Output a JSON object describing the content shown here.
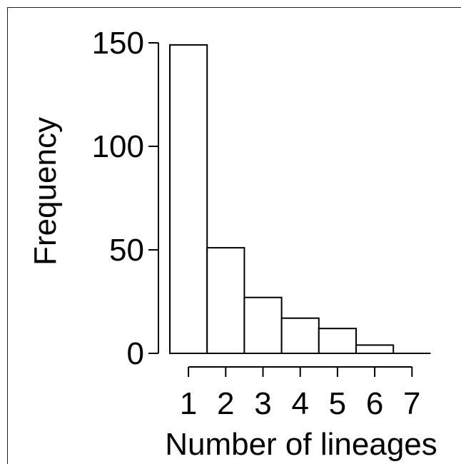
{
  "chart_data": {
    "type": "bar",
    "categories": [
      "1",
      "2",
      "3",
      "4",
      "5",
      "6",
      "7"
    ],
    "values": [
      149,
      51,
      27,
      17,
      12,
      4,
      0
    ],
    "title": "",
    "xlabel": "Number of lineages",
    "ylabel": "Frequency",
    "ylim": [
      0,
      150
    ],
    "yticks": [
      "0",
      "50",
      "100",
      "150"
    ],
    "grid": false,
    "colors": {
      "bar_fill": "#ffffff",
      "bar_stroke": "#000000",
      "axis": "#000000"
    }
  }
}
